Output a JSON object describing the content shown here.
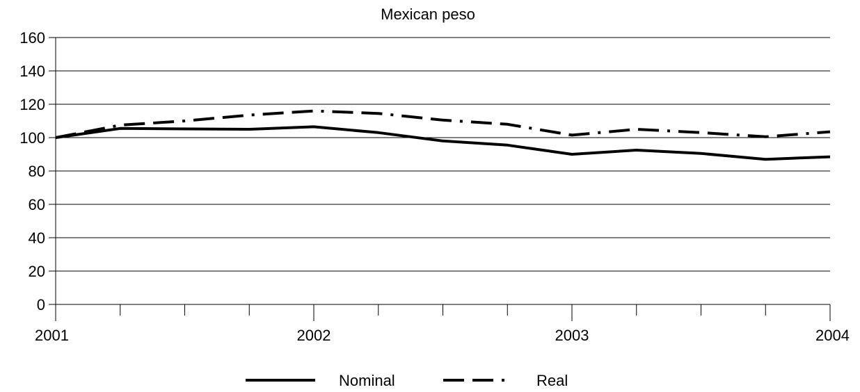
{
  "chart_data": {
    "type": "line",
    "title": "Mexican peso",
    "xlabel": "",
    "ylabel": "",
    "ylim": [
      0,
      160
    ],
    "xlim": [
      2001,
      2004
    ],
    "y_ticks": [
      0,
      20,
      40,
      60,
      80,
      100,
      120,
      140,
      160
    ],
    "x_ticks": [
      2001,
      2002,
      2003,
      2004
    ],
    "x_tick_labels": [
      "2001",
      "2002",
      "2003",
      "2004"
    ],
    "x_minor_ticks_per_year": 4,
    "grid": "horizontal",
    "legend_position": "bottom-center",
    "series": [
      {
        "name": "Nominal",
        "style": "solid",
        "color": "#000000",
        "x": [
          2001.0,
          2001.25,
          2001.75,
          2002.0,
          2002.25,
          2002.5,
          2002.75,
          2003.0,
          2003.25,
          2003.5,
          2003.75,
          2004.0
        ],
        "values": [
          100,
          105.5,
          105,
          106.5,
          103,
          98,
          95.5,
          90,
          92.5,
          90.5,
          87,
          88.5
        ]
      },
      {
        "name": "Real",
        "style": "dash-dot",
        "color": "#000000",
        "x": [
          2001.0,
          2001.25,
          2001.5,
          2001.75,
          2002.0,
          2002.25,
          2002.5,
          2002.75,
          2003.0,
          2003.25,
          2003.5,
          2003.75,
          2004.0
        ],
        "values": [
          100,
          107.5,
          110,
          113.5,
          116,
          114.5,
          110.5,
          108,
          101.5,
          105,
          103,
          100.5,
          103.5
        ]
      }
    ]
  }
}
